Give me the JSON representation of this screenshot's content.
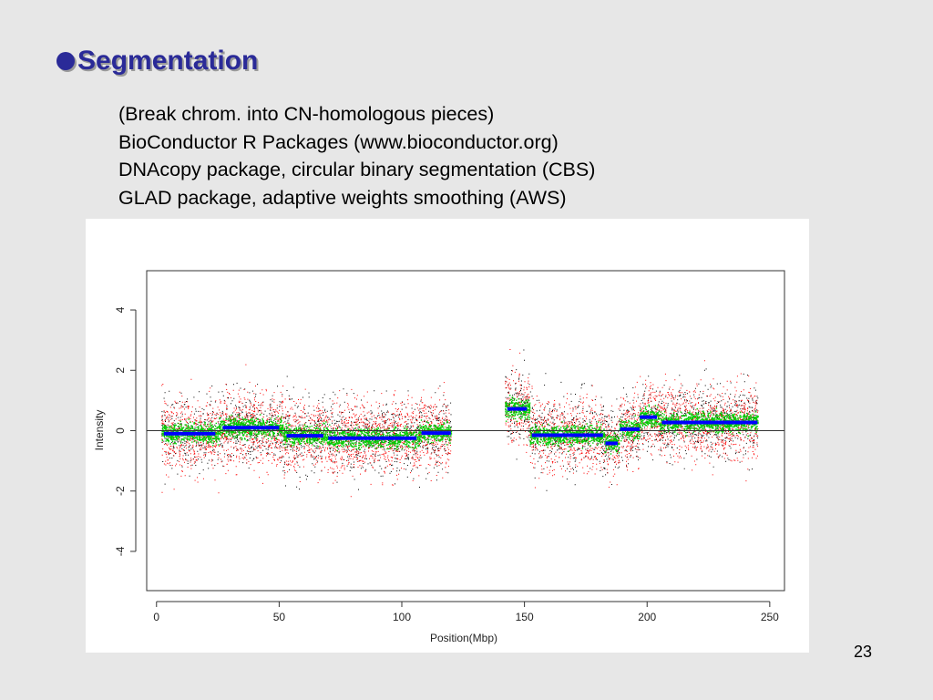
{
  "slide": {
    "title": "Segmentation",
    "bullet_lines": [
      "(Break chrom. into CN-homologous pieces)",
      "BioConductor R Packages  (www.bioconductor.org)",
      "DNAcopy package, circular binary segmentation (CBS)",
      "GLAD package, adaptive weights smoothing (AWS)"
    ],
    "page_number": "23"
  },
  "colors": {
    "title": "#2a2a98",
    "raw_black": "#000000",
    "raw_red": "#ff0000",
    "smoothed": "#00cc00",
    "segments": "#0000ff"
  },
  "chart_data": {
    "type": "scatter",
    "title": "",
    "xlabel": "Position(Mbp)",
    "ylabel": "Intensity",
    "xlim": [
      -4,
      256
    ],
    "ylim": [
      -5.3,
      5.3
    ],
    "x_ticks": [
      0,
      50,
      100,
      150,
      200,
      250
    ],
    "y_ticks": [
      -4,
      -2,
      0,
      2,
      4
    ],
    "reference_line_y": 0,
    "data_ranges_mbp": [
      [
        2,
        120
      ],
      [
        142,
        245
      ]
    ],
    "series": [
      {
        "name": "",
        "kind": "raw points (black/red)"
      },
      {
        "name": "",
        "kind": "smoothed (green)"
      },
      {
        "name": "",
        "kind": "segment means (blue)"
      }
    ],
    "segments": [
      {
        "x_start": 3,
        "x_end": 24,
        "y": -0.1
      },
      {
        "x_start": 27,
        "x_end": 50,
        "y": 0.1
      },
      {
        "x_start": 53,
        "x_end": 68,
        "y": -0.17
      },
      {
        "x_start": 70,
        "x_end": 106,
        "y": -0.25
      },
      {
        "x_start": 108,
        "x_end": 120,
        "y": -0.08
      },
      {
        "x_start": 143,
        "x_end": 151,
        "y": 0.72
      },
      {
        "x_start": 153,
        "x_end": 182,
        "y": -0.15
      },
      {
        "x_start": 183,
        "x_end": 188,
        "y": -0.42
      },
      {
        "x_start": 189,
        "x_end": 197,
        "y": 0.05
      },
      {
        "x_start": 197,
        "x_end": 204,
        "y": 0.45
      },
      {
        "x_start": 206,
        "x_end": 245,
        "y": 0.27
      }
    ]
  }
}
